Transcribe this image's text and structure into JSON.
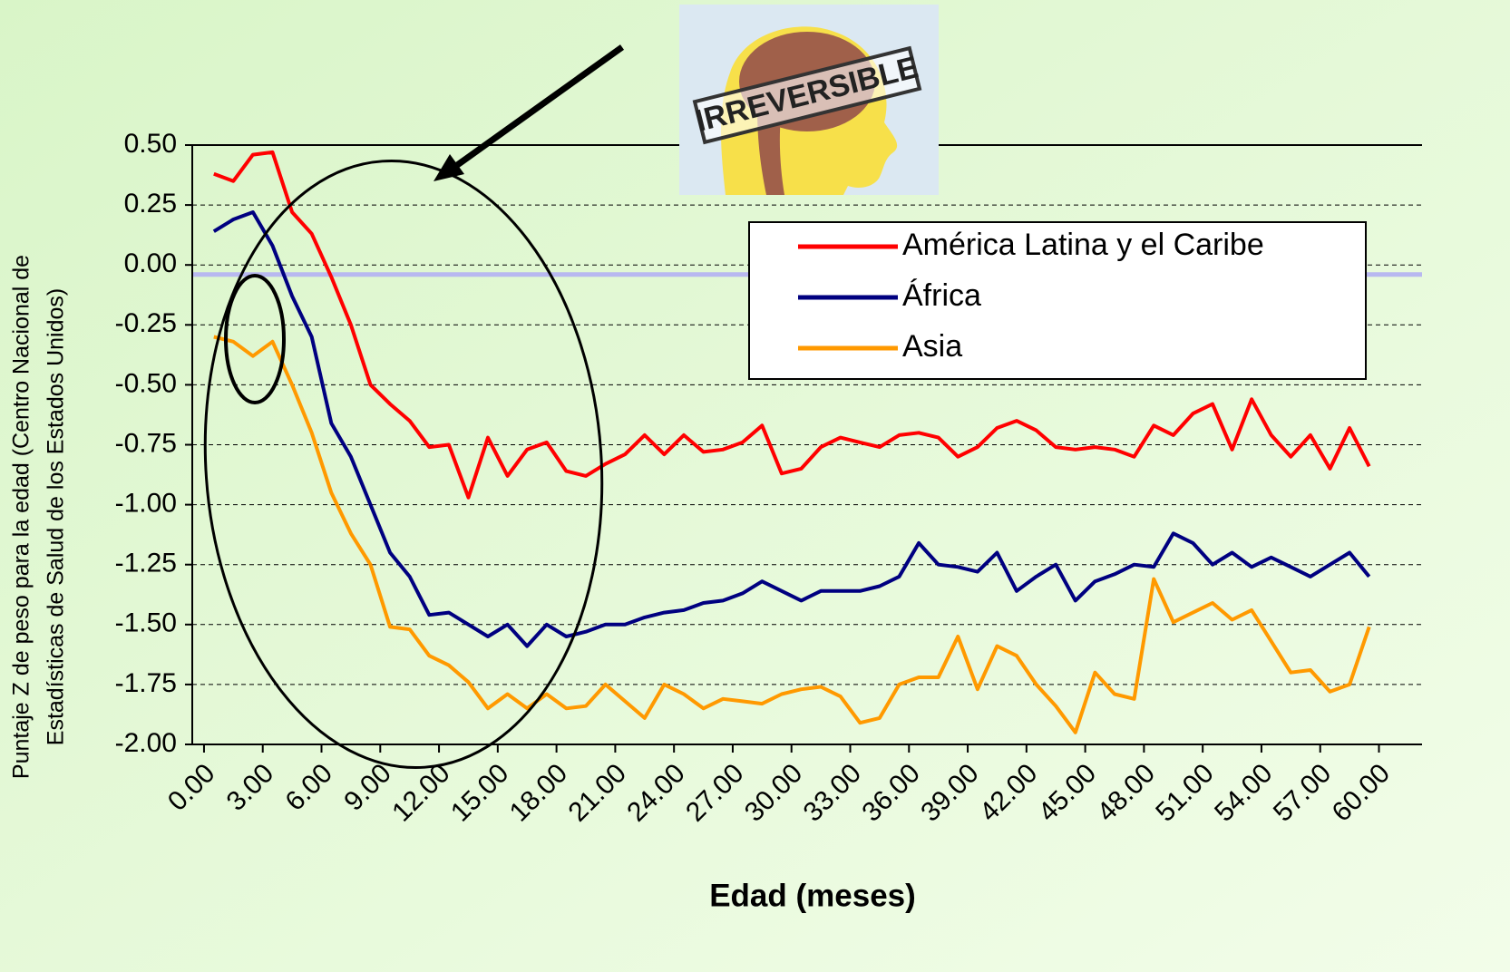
{
  "chart_data": {
    "type": "line",
    "annotation": "IRREVERSIBLE",
    "xlabel": "Edad (meses)",
    "ylabel": [
      "Puntaje Z de peso para la edad (Centro Nacional de",
      "Estadísticas de Salud de los Estados Unidos)"
    ],
    "x": [
      0.5,
      1.5,
      2.5,
      3.5,
      4.5,
      5.5,
      6.5,
      7.5,
      8.5,
      9.5,
      10.5,
      11.5,
      12.5,
      13.5,
      14.5,
      15.5,
      16.5,
      17.5,
      18.5,
      19.5,
      20.5,
      21.5,
      22.5,
      23.5,
      24.5,
      25.5,
      26.5,
      27.5,
      28.5,
      29.5,
      30.5,
      31.5,
      32.5,
      33.5,
      34.5,
      35.5,
      36.5,
      37.5,
      38.5,
      39.5,
      40.5,
      41.5,
      42.5,
      43.5,
      44.5,
      45.5,
      46.5,
      47.5,
      48.5,
      49.5,
      50.5,
      51.5,
      52.5,
      53.5,
      54.5,
      55.5,
      56.5,
      57.5,
      58.5,
      59.5
    ],
    "series": [
      {
        "name": "América Latina y el Caribe",
        "color": "#ff0000",
        "values": [
          0.38,
          0.35,
          0.46,
          0.47,
          0.22,
          0.13,
          -0.05,
          -0.25,
          -0.5,
          -0.58,
          -0.65,
          -0.76,
          -0.75,
          -0.97,
          -0.72,
          -0.88,
          -0.77,
          -0.74,
          -0.86,
          -0.88,
          -0.83,
          -0.79,
          -0.71,
          -0.79,
          -0.71,
          -0.78,
          -0.77,
          -0.74,
          -0.67,
          -0.87,
          -0.85,
          -0.76,
          -0.72,
          -0.74,
          -0.76,
          -0.71,
          -0.7,
          -0.72,
          -0.8,
          -0.76,
          -0.68,
          -0.65,
          -0.69,
          -0.76,
          -0.77,
          -0.76,
          -0.77,
          -0.8,
          -0.67,
          -0.71,
          -0.62,
          -0.58,
          -0.77,
          -0.56,
          -0.71,
          -0.8,
          -0.71,
          -0.85,
          -0.68,
          -0.84
        ]
      },
      {
        "name": "África",
        "color": "#000080",
        "values": [
          0.14,
          0.19,
          0.22,
          0.08,
          -0.13,
          -0.3,
          -0.66,
          -0.8,
          -1.0,
          -1.2,
          -1.3,
          -1.46,
          -1.45,
          -1.5,
          -1.55,
          -1.5,
          -1.59,
          -1.5,
          -1.55,
          -1.53,
          -1.5,
          -1.5,
          -1.47,
          -1.45,
          -1.44,
          -1.41,
          -1.4,
          -1.37,
          -1.32,
          -1.36,
          -1.4,
          -1.36,
          -1.36,
          -1.36,
          -1.34,
          -1.3,
          -1.16,
          -1.25,
          -1.26,
          -1.28,
          -1.2,
          -1.36,
          -1.3,
          -1.25,
          -1.4,
          -1.32,
          -1.29,
          -1.25,
          -1.26,
          -1.12,
          -1.16,
          -1.25,
          -1.2,
          -1.26,
          -1.22,
          -1.26,
          -1.3,
          -1.25,
          -1.2,
          -1.3
        ]
      },
      {
        "name": "Asia",
        "color": "#ff9900",
        "values": [
          -0.3,
          -0.32,
          -0.38,
          -0.32,
          -0.5,
          -0.7,
          -0.95,
          -1.12,
          -1.25,
          -1.51,
          -1.52,
          -1.63,
          -1.67,
          -1.74,
          -1.85,
          -1.79,
          -1.85,
          -1.79,
          -1.85,
          -1.84,
          -1.75,
          -1.82,
          -1.89,
          -1.75,
          -1.79,
          -1.85,
          -1.81,
          -1.82,
          -1.83,
          -1.79,
          -1.77,
          -1.76,
          -1.8,
          -1.91,
          -1.89,
          -1.75,
          -1.72,
          -1.72,
          -1.55,
          -1.77,
          -1.59,
          -1.63,
          -1.75,
          -1.84,
          -1.95,
          -1.7,
          -1.79,
          -1.81,
          -1.31,
          -1.49,
          -1.45,
          -1.41,
          -1.48,
          -1.44,
          -1.57,
          -1.7,
          -1.69,
          -1.78,
          -1.75,
          -1.51
        ]
      }
    ],
    "reference_line": {
      "value": -0.04,
      "color": "#b8b8f0"
    },
    "xlim": [
      -0.6,
      62.2
    ],
    "ylim": [
      -2.0,
      0.5
    ],
    "xticks": [
      {
        "value": 0,
        "label": "0.00"
      },
      {
        "value": 3,
        "label": "3.00"
      },
      {
        "value": 6,
        "label": "6.00"
      },
      {
        "value": 9,
        "label": "9.00"
      },
      {
        "value": 12,
        "label": "12.00"
      },
      {
        "value": 15,
        "label": "15.00"
      },
      {
        "value": 18,
        "label": "18.00"
      },
      {
        "value": 21,
        "label": "21.00"
      },
      {
        "value": 24,
        "label": "24.00"
      },
      {
        "value": 27,
        "label": "27.00"
      },
      {
        "value": 30,
        "label": "30.00"
      },
      {
        "value": 33,
        "label": "33.00"
      },
      {
        "value": 36,
        "label": "36.00"
      },
      {
        "value": 39,
        "label": "39.00"
      },
      {
        "value": 42,
        "label": "42.00"
      },
      {
        "value": 45,
        "label": "45.00"
      },
      {
        "value": 48,
        "label": "48.00"
      },
      {
        "value": 51,
        "label": "51.00"
      },
      {
        "value": 54,
        "label": "54.00"
      },
      {
        "value": 57,
        "label": "57.00"
      },
      {
        "value": 60,
        "label": "60.00"
      }
    ],
    "yticks": [
      {
        "value": -2,
        "label": "-2.00"
      },
      {
        "value": -1.75,
        "label": "-1.75"
      },
      {
        "value": -1.5,
        "label": "-1.50"
      },
      {
        "value": -1.25,
        "label": "-1.25"
      },
      {
        "value": -1,
        "label": "-1.00"
      },
      {
        "value": -0.75,
        "label": "-0.75"
      },
      {
        "value": -0.5,
        "label": "-0.50"
      },
      {
        "value": -0.25,
        "label": "-0.25"
      },
      {
        "value": 0,
        "label": "0.00"
      },
      {
        "value": 0.25,
        "label": "0.25"
      },
      {
        "value": 0.5,
        "label": "0.50"
      }
    ],
    "grid": true,
    "legend": "upper right"
  }
}
